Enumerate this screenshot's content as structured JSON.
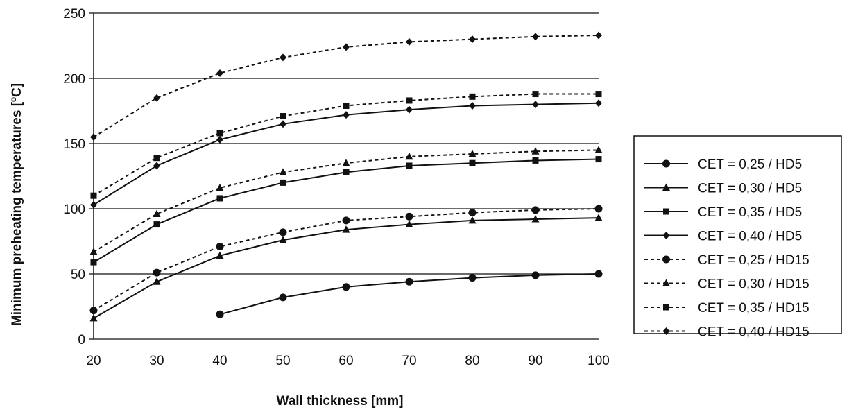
{
  "chart_data": {
    "type": "line",
    "title": "",
    "xlabel": "Wall thickness  [mm]",
    "ylabel": "Minimum  preheating temperatures [ºC]",
    "xlim": [
      20,
      100
    ],
    "ylim": [
      0,
      250
    ],
    "xticks": [
      20,
      30,
      40,
      50,
      60,
      70,
      80,
      90,
      100
    ],
    "yticks": [
      0,
      50,
      100,
      150,
      200,
      250
    ],
    "grid": "horizontal",
    "legend_position": "right",
    "x": [
      20,
      30,
      40,
      50,
      60,
      70,
      80,
      90,
      100
    ],
    "series": [
      {
        "name": "CET = 0,25 / HD5",
        "marker": "circle",
        "dash": "solid",
        "values": [
          null,
          null,
          19,
          32,
          40,
          44,
          47,
          49,
          50
        ]
      },
      {
        "name": "CET = 0,30 / HD5",
        "marker": "triangle",
        "dash": "solid",
        "values": [
          16,
          44,
          64,
          76,
          84,
          88,
          91,
          92,
          93
        ]
      },
      {
        "name": "CET = 0,35 / HD5",
        "marker": "square",
        "dash": "solid",
        "values": [
          59,
          88,
          108,
          120,
          128,
          133,
          135,
          137,
          138
        ]
      },
      {
        "name": "CET = 0,40 / HD5",
        "marker": "diamond",
        "dash": "solid",
        "values": [
          103,
          133,
          153,
          165,
          172,
          176,
          179,
          180,
          181
        ]
      },
      {
        "name": "CET = 0,25 / HD15",
        "marker": "circle",
        "dash": "dashed",
        "values": [
          22,
          51,
          71,
          82,
          91,
          94,
          97,
          99,
          100
        ]
      },
      {
        "name": "CET = 0,30 / HD15",
        "marker": "triangle",
        "dash": "dashed",
        "values": [
          67,
          96,
          116,
          128,
          135,
          140,
          142,
          144,
          145
        ]
      },
      {
        "name": "CET = 0,35 / HD15",
        "marker": "square",
        "dash": "dashed",
        "values": [
          110,
          139,
          158,
          171,
          179,
          183,
          186,
          188,
          188
        ]
      },
      {
        "name": "CET = 0,40 / HD15",
        "marker": "diamond",
        "dash": "dashed",
        "values": [
          155,
          185,
          204,
          216,
          224,
          228,
          230,
          232,
          233
        ]
      }
    ]
  }
}
